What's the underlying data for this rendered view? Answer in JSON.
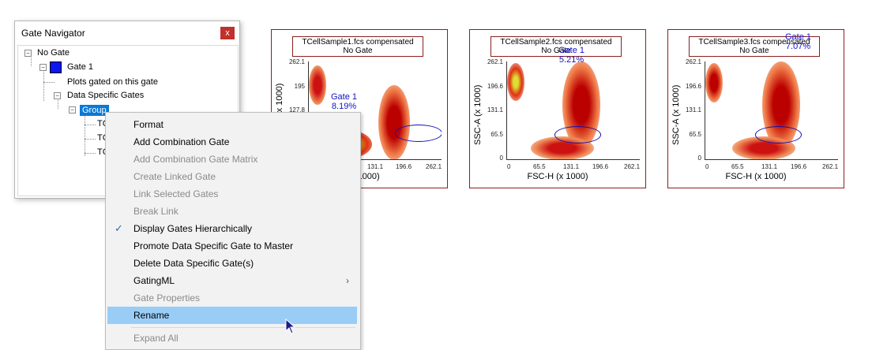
{
  "gate_navigator": {
    "title": "Gate Navigator",
    "close_label": "x",
    "tree": {
      "root": "No Gate",
      "gate1": "Gate 1",
      "plots_gated": "Plots gated on this gate",
      "data_specific_gates": "Data Specific Gates",
      "group": "Group",
      "children": [
        "TC",
        "TC",
        "TC"
      ]
    }
  },
  "plots": [
    {
      "title_line1": "TCellSample1.fcs compensated",
      "title_line2": "No Gate",
      "ylabel": "(x 1000)",
      "xlabel": "H (x 1000)",
      "yticks": [
        "262.1",
        "195",
        "127.8"
      ],
      "xticks": [
        "131.1",
        "196.6",
        "262.1"
      ],
      "gate_label": "Gate 1",
      "gate_percent": "8.19%"
    },
    {
      "title_line1": "TCellSample2.fcs compensated",
      "title_line2": "No Gate",
      "ylabel": "SSC-A (x 1000)",
      "xlabel": "FSC-H (x 1000)",
      "yticks": [
        "262.1",
        "196.6",
        "131.1",
        "65.5",
        "0"
      ],
      "xticks": [
        "0",
        "65.5",
        "131.1",
        "196.6",
        "262.1"
      ],
      "gate_label": "Gate 1",
      "gate_percent": "5.21%"
    },
    {
      "title_line1": "TCellSample3.fcs compensated",
      "title_line2": "No Gate",
      "ylabel": "SSC-A (x 1000)",
      "xlabel": "FSC-H (x 1000)",
      "yticks": [
        "262.1",
        "196.6",
        "131.1",
        "65.5",
        "0"
      ],
      "xticks": [
        "0",
        "65.5",
        "131.1",
        "196.6",
        "262.1"
      ],
      "gate_label": "Gate 1",
      "gate_percent": "7.07%"
    }
  ],
  "context_menu": {
    "items": [
      {
        "label": "Format",
        "enabled": true
      },
      {
        "label": "Add Combination Gate",
        "enabled": true
      },
      {
        "label": "Add Combination Gate Matrix",
        "enabled": false
      },
      {
        "label": "Create Linked Gate",
        "enabled": false
      },
      {
        "label": "Link Selected Gates",
        "enabled": false
      },
      {
        "label": "Break Link",
        "enabled": false
      },
      {
        "label": "Display Gates Hierarchically",
        "enabled": true,
        "checked": true
      },
      {
        "label": "Promote Data Specific Gate to Master",
        "enabled": true
      },
      {
        "label": "Delete Data Specific Gate(s)",
        "enabled": true
      },
      {
        "label": "GatingML",
        "enabled": true,
        "submenu": true
      },
      {
        "label": "Gate Properties",
        "enabled": false
      },
      {
        "label": "Rename",
        "enabled": true,
        "highlighted": true
      },
      {
        "label": "Expand All",
        "enabled": false
      }
    ]
  },
  "colors": {
    "gate_swatch": "#0b16f0",
    "selection": "#0a79d6",
    "menu_hover": "#99cdf6",
    "plot_border": "#8a1f1f",
    "gate_label": "#1212c8"
  },
  "icons": {
    "check": "checkmark-icon",
    "submenu": "chevron-right-icon",
    "close": "close-icon",
    "cursor": "mouse-pointer-icon"
  }
}
